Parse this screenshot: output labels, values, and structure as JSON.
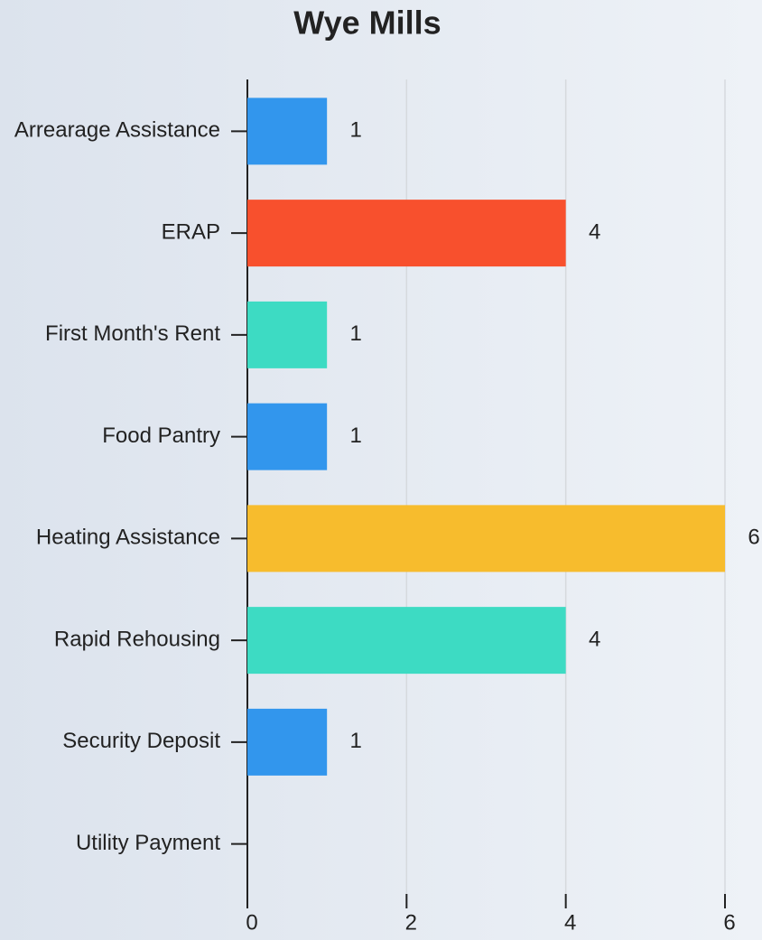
{
  "chart_data": {
    "type": "hbar",
    "title": "Wye Mills",
    "categories": [
      "Arrearage Assistance",
      "ERAP",
      "First Month's Rent",
      "Food Pantry",
      "Heating Assistance",
      "Rapid Rehousing",
      "Security Deposit",
      "Utility Payment"
    ],
    "values": [
      1,
      4,
      1,
      1,
      6,
      4,
      1,
      null
    ],
    "colors": [
      "#3296ed",
      "#f8502d",
      "#3ddbc3",
      "#3296ed",
      "#f7bc2d",
      "#3ddbc3",
      "#3296ed",
      null
    ],
    "xlim": [
      0,
      6
    ],
    "xticks": [
      0,
      2,
      4,
      6
    ],
    "grid": true
  }
}
